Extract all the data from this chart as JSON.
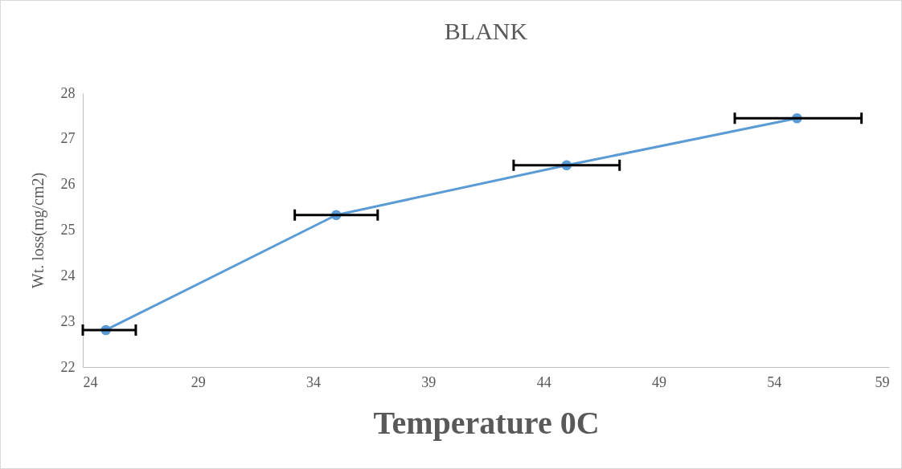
{
  "chart_data": {
    "type": "line",
    "title": "BLANK",
    "xlabel": "Temperature 0C",
    "ylabel": "Wt. loss(mg/cm2)",
    "x": [
      25,
      35,
      45,
      55
    ],
    "series": [
      {
        "color": "#5b9bd5",
        "values": [
          22.81,
          25.33,
          26.42,
          27.45
        ],
        "xerrors": [
          [
            24,
            26.3
          ],
          [
            33.2,
            36.8
          ],
          [
            42.7,
            47.3
          ],
          [
            52.3,
            57.8
          ]
        ]
      }
    ],
    "xlim": [
      24,
      59
    ],
    "xticks": [
      24,
      29,
      34,
      39,
      44,
      49,
      54,
      59
    ],
    "ylim": [
      22,
      28
    ],
    "yticks": [
      22,
      23,
      24,
      25,
      26,
      27,
      28
    ],
    "grid": false,
    "marker": "circle",
    "line_style": "solid"
  }
}
